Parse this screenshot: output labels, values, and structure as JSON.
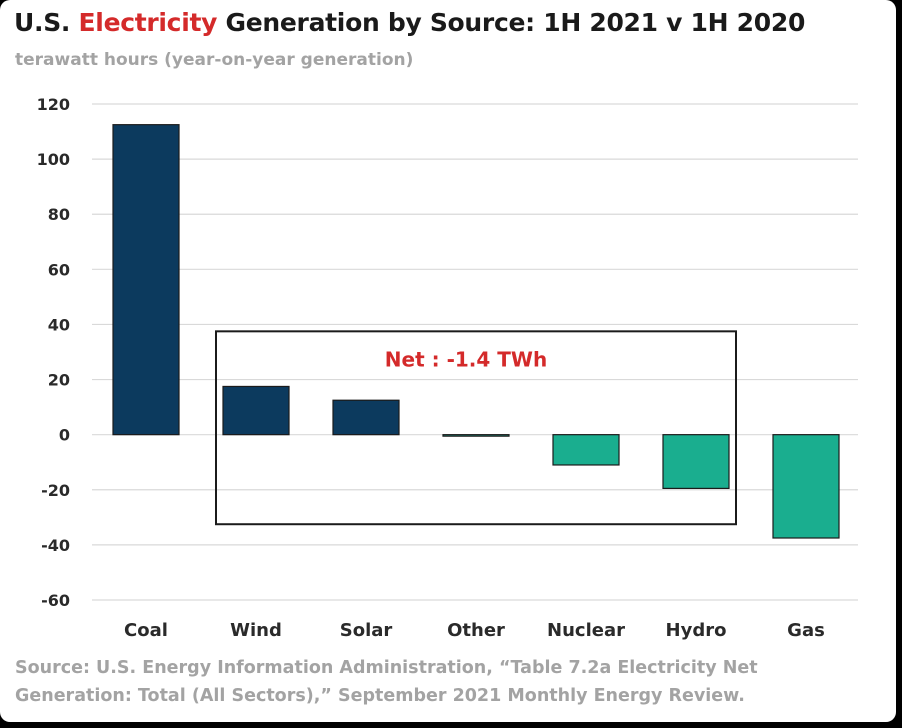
{
  "title": {
    "prefix": "U.S. ",
    "highlight": "Electricity",
    "suffix": " Generation by Source: 1H 2021 v 1H 2020"
  },
  "subtitle": "terawatt hours (year-on-year generation)",
  "source": "Source: U.S. Energy Information Administration,  “Table 7.2a Electricity Net Generation: Total (All Sectors),” September 2021 Monthly Energy Review.",
  "colors": {
    "positive": "#0c3a5e",
    "negative": "#1aae8f",
    "highlight": "#d42a2a",
    "grid": "#d9d9d9"
  },
  "chart_data": {
    "type": "bar",
    "title": "U.S. Electricity Generation by Source: 1H 2021 v 1H 2020",
    "subtitle": "terawatt hours (year-on-year generation)",
    "categories": [
      "Coal",
      "Wind",
      "Solar",
      "Other",
      "Nuclear",
      "Hydro",
      "Gas"
    ],
    "values": [
      112.5,
      17.5,
      12.5,
      -0.5,
      -11,
      -19.5,
      -37.5
    ],
    "ylim": [
      -60,
      120
    ],
    "yticks": [
      120,
      100,
      80,
      60,
      40,
      20,
      0,
      -20,
      -40,
      -60
    ],
    "grid": true,
    "annotation": {
      "text": "Net : -1.4 TWh",
      "box_categories": [
        "Wind",
        "Hydro"
      ],
      "box_y_range": [
        -32.5,
        37.5
      ]
    }
  }
}
